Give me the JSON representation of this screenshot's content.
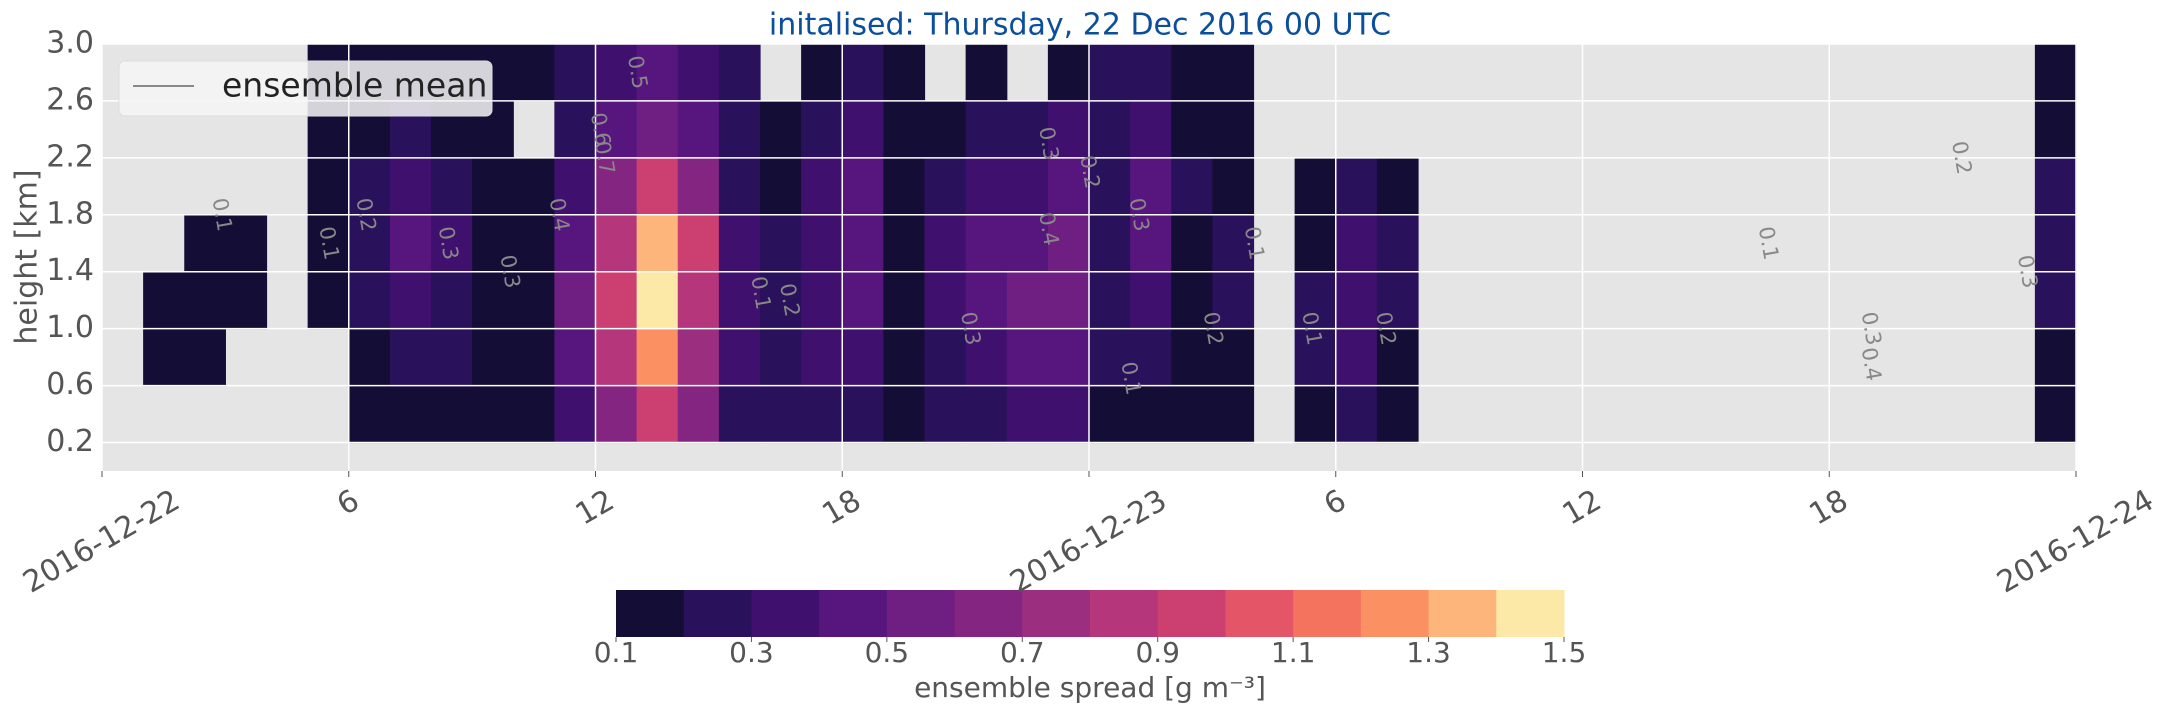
{
  "chart_data": {
    "type": "contourf",
    "title": "initalised: Thursday, 22 Dec 2016 00 UTC",
    "y_label": "height [km]",
    "legend": {
      "label": "ensemble mean",
      "corner": "upper left"
    },
    "colorbar_label": "ensemble spread [g m⁻³]",
    "grid": true,
    "xlim": [
      0,
      48
    ],
    "xticks": [
      {
        "value": 0,
        "label": "2016-12-22"
      },
      6,
      12,
      18,
      {
        "value": 24,
        "label": "2016-12-23"
      },
      {
        "value": 30,
        "label": "6"
      },
      {
        "value": 36,
        "label": "12"
      },
      {
        "value": 42,
        "label": "18"
      },
      {
        "value": 48,
        "label": "2016-12-24"
      }
    ],
    "ylim": [
      0,
      3
    ],
    "yticks": [
      0.2,
      0.6,
      {
        "value": 1,
        "label": "1.0"
      },
      1.4,
      1.8,
      2.2,
      2.6,
      {
        "value": 3,
        "label": "3.0"
      }
    ],
    "levels": [
      0.1,
      0.2,
      0.3,
      0.4,
      0.5,
      0.6,
      0.7,
      0.8,
      0.9,
      1.0,
      1.1,
      1.2,
      1.3,
      1.4,
      1.5
    ],
    "colors": [
      "#140e36",
      "#2a115c",
      "#40106f",
      "#57157e",
      "#6e1f81",
      "#842681",
      "#9b2e7f",
      "#b5367a",
      "#cc3f71",
      "#e35567",
      "#f4735f",
      "#fb9162",
      "#fdb57b",
      "#fce9a7"
    ],
    "colorbar_ticks": [
      0.1,
      0.3,
      0.5,
      0.7,
      0.9,
      1.1,
      1.3,
      1.5
    ],
    "x": [
      0.5,
      1.5,
      2.5,
      3.5,
      4.5,
      5.5,
      6.5,
      7.5,
      8.5,
      9.5,
      10.5,
      11.5,
      12.5,
      13.5,
      14.5,
      15.5,
      16.5,
      17.5,
      18.5,
      19.5,
      20.5,
      21.5,
      22.5,
      23.5,
      24.5,
      25.5,
      26.5,
      27.5,
      28.5,
      29.5,
      30.5,
      31.5,
      32.5,
      33.5,
      34.5,
      35.5,
      36.5,
      37.5,
      38.5,
      39.5,
      40.5,
      41.5,
      42.5,
      43.5,
      44.5,
      45.5,
      46.5,
      47.5
    ],
    "y": [
      0.4,
      0.8,
      1.2,
      1.6,
      2.0,
      2.4,
      2.8
    ],
    "z": [
      [
        0,
        0,
        0,
        0,
        0,
        0,
        0.1,
        0.1,
        0.1,
        0.1,
        0.1,
        0.3,
        0.6,
        0.9,
        0.6,
        0.2,
        0.2,
        0.2,
        0.2,
        0.1,
        0.2,
        0.2,
        0.3,
        0.3,
        0.1,
        0.1,
        0.1,
        0.1,
        0,
        0.1,
        0.2,
        0.1,
        0,
        0,
        0,
        0,
        0,
        0,
        0,
        0,
        0,
        0,
        0,
        0,
        0,
        0,
        0,
        0.1
      ],
      [
        0,
        0.1,
        0.1,
        0,
        0,
        0,
        0.1,
        0.2,
        0.2,
        0.1,
        0.1,
        0.4,
        0.8,
        1.2,
        0.7,
        0.3,
        0.2,
        0.3,
        0.3,
        0.1,
        0.2,
        0.3,
        0.4,
        0.4,
        0.2,
        0.2,
        0.1,
        0.1,
        0,
        0.2,
        0.3,
        0.1,
        0,
        0,
        0,
        0,
        0,
        0,
        0,
        0,
        0,
        0,
        0,
        0,
        0,
        0,
        0,
        0.1
      ],
      [
        0,
        0.1,
        0.1,
        0.1,
        0,
        0.1,
        0.2,
        0.3,
        0.2,
        0.1,
        0.1,
        0.5,
        0.9,
        1.4,
        0.8,
        0.3,
        0.2,
        0.3,
        0.4,
        0.1,
        0.3,
        0.4,
        0.5,
        0.5,
        0.2,
        0.3,
        0.1,
        0.2,
        0,
        0.2,
        0.3,
        0.2,
        0,
        0,
        0,
        0,
        0,
        0,
        0,
        0,
        0,
        0,
        0,
        0,
        0,
        0,
        0,
        0.2
      ],
      [
        0,
        0,
        0.1,
        0.1,
        0,
        0.1,
        0.2,
        0.4,
        0.3,
        0.1,
        0.1,
        0.4,
        0.8,
        1.3,
        0.9,
        0.3,
        0.2,
        0.3,
        0.4,
        0.1,
        0.3,
        0.4,
        0.4,
        0.5,
        0.2,
        0.4,
        0.1,
        0.2,
        0,
        0.1,
        0.3,
        0.2,
        0,
        0,
        0,
        0,
        0,
        0,
        0,
        0,
        0,
        0,
        0,
        0,
        0,
        0,
        0,
        0.2
      ],
      [
        0,
        0,
        0,
        0,
        0,
        0.1,
        0.2,
        0.3,
        0.2,
        0.1,
        0.1,
        0.3,
        0.6,
        0.9,
        0.6,
        0.2,
        0.1,
        0.3,
        0.4,
        0.1,
        0.2,
        0.3,
        0.3,
        0.4,
        0.2,
        0.4,
        0.2,
        0.1,
        0,
        0.1,
        0.2,
        0.1,
        0,
        0,
        0,
        0,
        0,
        0,
        0,
        0,
        0,
        0,
        0,
        0,
        0,
        0,
        0,
        0.2
      ],
      [
        0,
        0,
        0,
        0,
        0,
        0.1,
        0.1,
        0.2,
        0.1,
        0.1,
        0,
        0.2,
        0.4,
        0.5,
        0.4,
        0.2,
        0.1,
        0.2,
        0.3,
        0.1,
        0.1,
        0.2,
        0.2,
        0.3,
        0.2,
        0.3,
        0.1,
        0.1,
        0,
        0,
        0,
        0,
        0,
        0,
        0,
        0,
        0,
        0,
        0,
        0,
        0,
        0,
        0,
        0,
        0,
        0,
        0,
        0.1
      ],
      [
        0,
        0,
        0,
        0,
        0,
        0.1,
        0.1,
        0.1,
        0.1,
        0.1,
        0.1,
        0.2,
        0.3,
        0.4,
        0.3,
        0.2,
        0,
        0.1,
        0.2,
        0.1,
        0,
        0.1,
        0,
        0.1,
        0.2,
        0.2,
        0.1,
        0.1,
        0,
        0,
        0,
        0,
        0,
        0,
        0,
        0,
        0,
        0,
        0,
        0,
        0,
        0,
        0,
        0,
        0,
        0,
        0,
        0.1
      ]
    ],
    "mean_contour_labels": [
      {
        "value": 0.1,
        "x": 2.9,
        "y": 1.8
      },
      {
        "value": 0.1,
        "x": 5.5,
        "y": 1.6
      },
      {
        "value": 0.2,
        "x": 6.4,
        "y": 1.8
      },
      {
        "value": 0.3,
        "x": 8.4,
        "y": 1.6
      },
      {
        "value": 0.3,
        "x": 9.9,
        "y": 1.4
      },
      {
        "value": 0.4,
        "x": 11.1,
        "y": 1.8
      },
      {
        "value": 0.5,
        "x": 13,
        "y": 2.8
      },
      {
        "value": 0.6,
        "x": 12.1,
        "y": 2.4
      },
      {
        "value": 0.7,
        "x": 12.2,
        "y": 2.2
      },
      {
        "value": 0.1,
        "x": 16,
        "y": 1.25
      },
      {
        "value": 0.2,
        "x": 16.7,
        "y": 1.2
      },
      {
        "value": 0.3,
        "x": 21.1,
        "y": 1.0
      },
      {
        "value": 0.4,
        "x": 23,
        "y": 1.7
      },
      {
        "value": 0.3,
        "x": 23,
        "y": 2.3
      },
      {
        "value": 0.2,
        "x": 24,
        "y": 2.1
      },
      {
        "value": 0.3,
        "x": 25.2,
        "y": 1.8
      },
      {
        "value": 0.1,
        "x": 25,
        "y": 0.65
      },
      {
        "value": 0.2,
        "x": 27,
        "y": 1.0
      },
      {
        "value": 0.1,
        "x": 28,
        "y": 1.6
      },
      {
        "value": 0.1,
        "x": 29.4,
        "y": 1.0
      },
      {
        "value": 0.2,
        "x": 31.2,
        "y": 1.0
      },
      {
        "value": 0.1,
        "x": 40.5,
        "y": 1.6
      },
      {
        "value": 0.3,
        "x": 43,
        "y": 1.0
      },
      {
        "value": 0.4,
        "x": 43,
        "y": 0.75
      },
      {
        "value": 0.2,
        "x": 45.2,
        "y": 2.2
      },
      {
        "value": 0.3,
        "x": 46.8,
        "y": 1.4
      }
    ]
  }
}
